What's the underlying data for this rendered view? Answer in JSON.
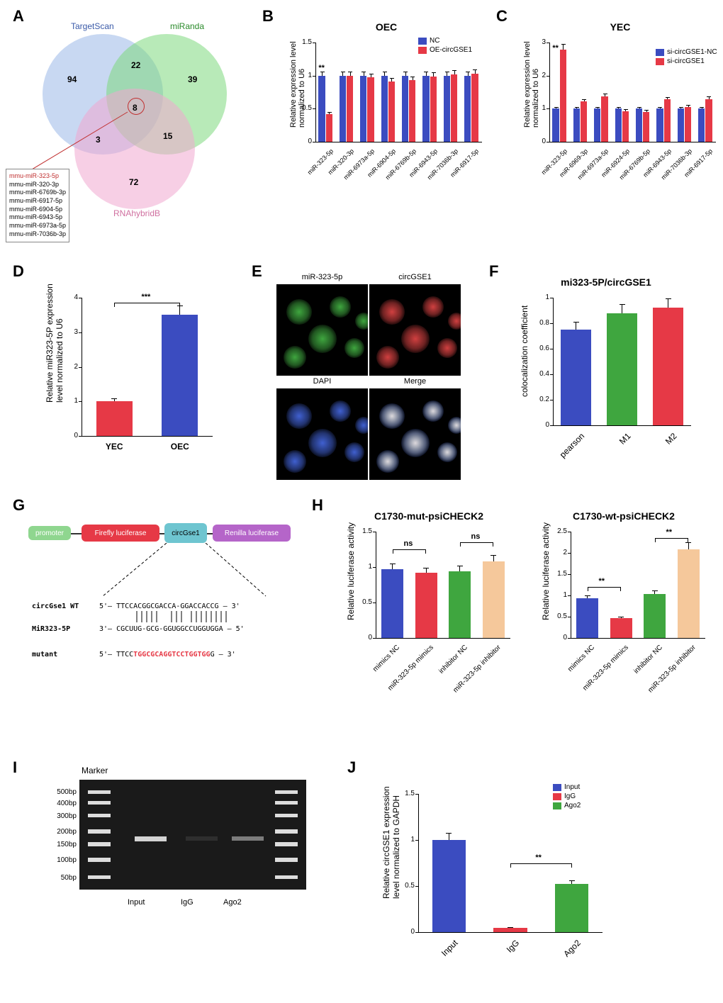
{
  "panelA": {
    "label": "A",
    "databases": {
      "targetscan": "TargetScan",
      "miranda": "miRanda",
      "rnahybrid": "RNAhybridB"
    },
    "colors": {
      "targetscan": "#9ab8e8",
      "miranda": "#7dd87d",
      "rnahybrid": "#f0a8d0"
    },
    "counts": {
      "ts_only": "94",
      "mr_only": "39",
      "rh_only": "72",
      "ts_mr": "22",
      "mr_rh": "15",
      "ts_rh": "3",
      "all": "8"
    },
    "mirna_list": [
      "mmu-miR-323-5p",
      "mmu-miR-320-3p",
      "mmu-miR-6769b-3p",
      "mmu-miR-6917-5p",
      "mmu-miR-6904-5p",
      "mmu-miR-6943-5p",
      "mmu-miR-6973a-5p",
      "mmu-miR-7036b-3p"
    ]
  },
  "panelB": {
    "label": "B",
    "title": "OEC",
    "ylabel": "Relative expression level\nnormalized to U6",
    "ylim": [
      0,
      1.5
    ],
    "yticks": [
      0.0,
      0.5,
      1.0,
      1.5
    ],
    "legend": [
      {
        "label": "NC",
        "color": "#3b4cc0"
      },
      {
        "label": "OE-circGSE1",
        "color": "#e63946"
      }
    ],
    "categories": [
      "miR-323-5p",
      "miR-320-3p",
      "miR-6973a-5p",
      "miR-6904-5p",
      "miR-6769b-5p",
      "miR-6943-5p",
      "miR-7036b-3p",
      "miR-6917-5p"
    ],
    "nc_values": [
      1.0,
      1.0,
      1.0,
      1.0,
      1.0,
      1.0,
      1.0,
      1.0
    ],
    "oe_values": [
      0.42,
      1.0,
      0.97,
      0.91,
      0.93,
      0.99,
      1.02,
      1.03
    ],
    "sig": [
      "**",
      "",
      "",
      "",
      "",
      "",
      "",
      ""
    ]
  },
  "panelC": {
    "label": "C",
    "title": "YEC",
    "ylabel": "Relative expression level\nnormalized to U6",
    "ylim": [
      0,
      3
    ],
    "yticks": [
      0,
      1,
      2,
      3
    ],
    "legend": [
      {
        "label": "si-circGSE1-NC",
        "color": "#3b4cc0"
      },
      {
        "label": "si-circGSE1",
        "color": "#e63946"
      }
    ],
    "categories": [
      "miR-323-5p",
      "miR-6969-3p",
      "miR-6973a-5p",
      "miR-6924-5p",
      "miR-6769b-5p",
      "miR-6943-5p",
      "miR-7036b-3p",
      "miR-6917-5p"
    ],
    "nc_values": [
      1.0,
      1.0,
      1.0,
      1.0,
      1.0,
      1.0,
      1.0,
      1.0
    ],
    "si_values": [
      2.78,
      1.22,
      1.38,
      0.92,
      0.9,
      1.28,
      1.05,
      1.29
    ],
    "sig": [
      "**",
      "",
      "",
      "",
      "",
      "",
      "",
      ""
    ]
  },
  "panelD": {
    "label": "D",
    "ylabel": "Relative miR323-5P expression\nlevel normalized to U6",
    "ylim": [
      0,
      4
    ],
    "yticks": [
      0,
      1,
      2,
      3,
      4
    ],
    "categories": [
      "YEC",
      "OEC"
    ],
    "values": [
      1.0,
      3.5
    ],
    "colors": [
      "#e63946",
      "#3b4cc0"
    ],
    "sig": "***"
  },
  "panelE": {
    "label": "E",
    "images": [
      "miR-323-5p",
      "circGSE1",
      "DAPI",
      "Merge"
    ],
    "colors": {
      "miR-323-5p": "#3fa63f",
      "circGSE1": "#d04040",
      "DAPI": "#4060d0",
      "Merge": "#d0c040"
    }
  },
  "panelF": {
    "label": "F",
    "title": "mi323-5P/circGSE1",
    "ylabel": "colocalization coefficient",
    "ylim": [
      0,
      1.0
    ],
    "yticks": [
      0.0,
      0.2,
      0.4,
      0.6,
      0.8,
      1.0
    ],
    "categories": [
      "pearson",
      "M1",
      "M2"
    ],
    "values": [
      0.75,
      0.88,
      0.92
    ],
    "colors": [
      "#3b4cc0",
      "#3fa63f",
      "#e63946"
    ]
  },
  "panelG": {
    "label": "G",
    "boxes": [
      {
        "label": "promoter",
        "color": "#8fd68f"
      },
      {
        "label": "Firefly luciferase",
        "color": "#e63946"
      },
      {
        "label": "circGse1",
        "color": "#6ec5d0"
      },
      {
        "label": "Renilla luciferase",
        "color": "#b565c9"
      }
    ],
    "seq_wt_label": "circGse1 WT",
    "seq_wt": "5'— TTCCACGGCGACCA-GGACCACCG — 3'",
    "seq_mir_label": "MiR323-5P",
    "seq_mir": "3'— CGCUUG-GCG-GGUGGCCUGGUGGA — 5'",
    "seq_mut_label": "mutant",
    "seq_mut_pre": "5'— TTCC",
    "seq_mut_red1": "TGGCGCA",
    "seq_mut_mid": "",
    "seq_mut_red2": "GGTCCTGGTGG",
    "seq_mut_post": "G — 3'"
  },
  "panelH": {
    "label": "H",
    "mut_title": "C1730-mut-psiCHECK2",
    "wt_title": "C1730-wt-psiCHECK2",
    "ylabel": "Relative luciferase activity",
    "ylim": [
      0,
      2.5
    ],
    "yticks": [
      0.0,
      0.5,
      1.0,
      1.5,
      2.0,
      2.5
    ],
    "categories": [
      "mimics NC",
      "miR-323-5p mimics",
      "inhibitor NC",
      "miR-323-5p inhibitor"
    ],
    "colors": [
      "#3b4cc0",
      "#e63946",
      "#3fa63f",
      "#f5c89b"
    ],
    "mut_values": [
      0.97,
      0.92,
      0.94,
      1.08
    ],
    "mut_sig": [
      "ns",
      "ns"
    ],
    "wt_values": [
      0.93,
      0.46,
      1.04,
      2.08
    ],
    "wt_sig": [
      "**",
      "**"
    ]
  },
  "panelI": {
    "label": "I",
    "marker_label": "Marker",
    "marker_bands": [
      "500bp",
      "400bp",
      "300bp",
      "200bp",
      "150bp",
      "100bp",
      "50bp"
    ],
    "lanes": [
      "Input",
      "IgG",
      "Ago2"
    ]
  },
  "panelJ": {
    "label": "J",
    "ylabel": "Relative circGSE1 expression\nlevel normalized to GAPDH",
    "ylim": [
      0,
      1.5
    ],
    "yticks": [
      0.0,
      0.5,
      1.0,
      1.5
    ],
    "legend": [
      {
        "label": "Input",
        "color": "#3b4cc0"
      },
      {
        "label": "IgG",
        "color": "#e63946"
      },
      {
        "label": "Ago2",
        "color": "#3fa63f"
      }
    ],
    "categories": [
      "Input",
      "IgG",
      "Ago2"
    ],
    "values": [
      1.0,
      0.05,
      0.52
    ],
    "sig": "**"
  }
}
